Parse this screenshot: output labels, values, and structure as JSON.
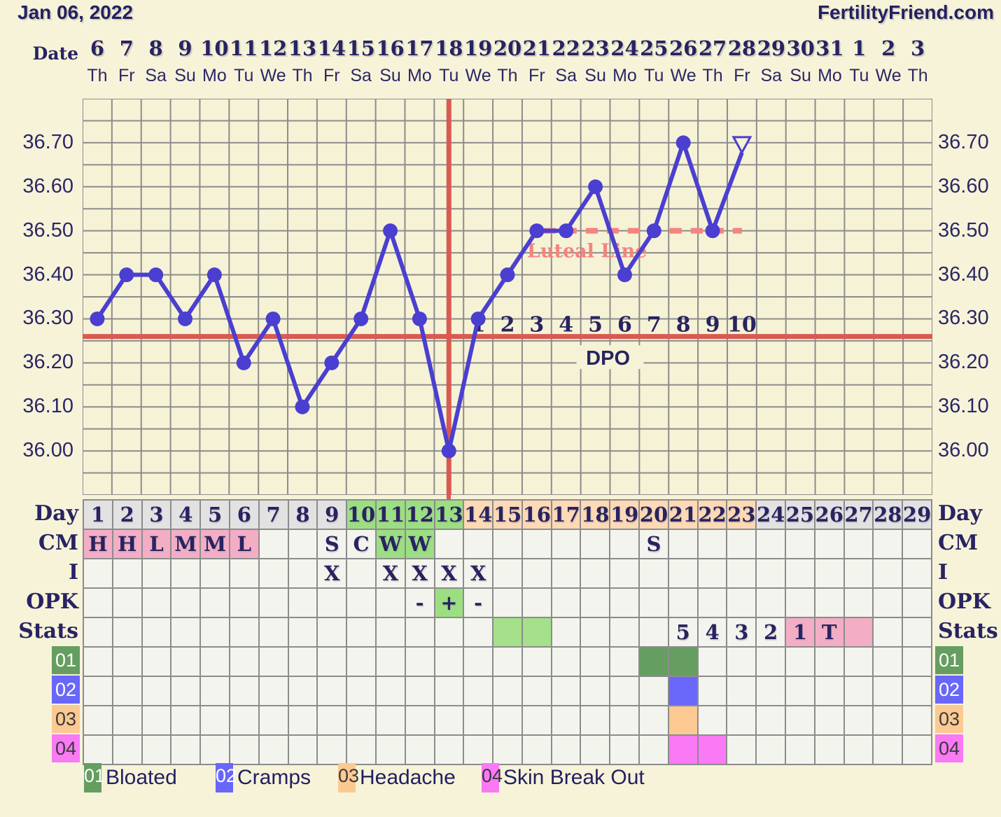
{
  "header": {
    "date_title": "Jan 06, 2022",
    "site_name": "FertilityFriend.com",
    "date_row_label": "Date"
  },
  "calendar": {
    "dates": [
      "6",
      "7",
      "8",
      "9",
      "10",
      "11",
      "12",
      "13",
      "14",
      "15",
      "16",
      "17",
      "18",
      "19",
      "20",
      "21",
      "22",
      "23",
      "24",
      "25",
      "26",
      "27",
      "28",
      "29",
      "30",
      "31",
      "1",
      "2",
      "3"
    ],
    "weekdays": [
      "Th",
      "Fr",
      "Sa",
      "Su",
      "Mo",
      "Tu",
      "We",
      "Th",
      "Fr",
      "Sa",
      "Su",
      "Mo",
      "Tu",
      "We",
      "Th",
      "Fr",
      "Sa",
      "Su",
      "Mo",
      "Tu",
      "We",
      "Th",
      "Fr",
      "Sa",
      "Su",
      "Mo",
      "Tu",
      "We",
      "Th"
    ]
  },
  "chart_data": {
    "type": "line",
    "x_label": "Cycle Day",
    "x_days": [
      1,
      2,
      3,
      4,
      5,
      6,
      7,
      8,
      9,
      10,
      11,
      12,
      13,
      14,
      15,
      16,
      17,
      18,
      19,
      20,
      21,
      22,
      23,
      24,
      25,
      26,
      27,
      28,
      29
    ],
    "temps_celsius": [
      36.3,
      36.4,
      36.4,
      36.3,
      36.4,
      36.2,
      36.3,
      36.1,
      36.2,
      36.3,
      36.5,
      36.3,
      36.0,
      36.3,
      36.4,
      36.5,
      36.5,
      36.6,
      36.4,
      36.5,
      36.7,
      36.5,
      36.7,
      null,
      null,
      null,
      null,
      null,
      null
    ],
    "last_point_marker": "open-triangle",
    "yticks": [
      "36.70",
      "36.60",
      "36.50",
      "36.40",
      "36.30",
      "36.20",
      "36.10",
      "36.00"
    ],
    "ylim": [
      35.9,
      36.8
    ],
    "grid_step": 0.05,
    "coverline_value": 36.26,
    "ovulation_day": 13,
    "luteal_line": {
      "value": 36.5,
      "label": "Luteal Line",
      "start_day": 16,
      "end_day": 23
    },
    "dpo": {
      "label": "DPO",
      "numbers": [
        "1",
        "2",
        "3",
        "4",
        "5",
        "6",
        "7",
        "8",
        "9",
        "10"
      ],
      "start_day": 14
    }
  },
  "colors": {
    "page_bg": "#f7f3d9",
    "plot_bg": "#f6f2d6",
    "grid": "#8c8c8c",
    "cell_bg": "#f4f4ee",
    "navy": "#282361",
    "temp_line": "#4a3fd0",
    "red_line": "#d85a50",
    "salmon": "#f5837f",
    "gy": "#e2e2e2",
    "gn": "#9cdf82",
    "pe": "#fdd9b5",
    "pk": "#f3aec6",
    "lg": "#a5e08a",
    "g1": "#659e60",
    "bl": "#6967fa",
    "or": "#fcc993",
    "mg": "#fa79f5"
  },
  "table": {
    "rows": [
      {
        "id": "day",
        "label": "Day",
        "cells": [
          [
            "1",
            "gy"
          ],
          [
            "2",
            "gy"
          ],
          [
            "3",
            "gy"
          ],
          [
            "4",
            "gy"
          ],
          [
            "5",
            "gy"
          ],
          [
            "6",
            "gy"
          ],
          [
            "7",
            "gy"
          ],
          [
            "8",
            "gy"
          ],
          [
            "9",
            "gy"
          ],
          [
            "10",
            "gn"
          ],
          [
            "11",
            "gn"
          ],
          [
            "12",
            "gn"
          ],
          [
            "13",
            "gn"
          ],
          [
            "14",
            "pe"
          ],
          [
            "15",
            "pe"
          ],
          [
            "16",
            "pe"
          ],
          [
            "17",
            "pe"
          ],
          [
            "18",
            "pe"
          ],
          [
            "19",
            "pe"
          ],
          [
            "20",
            "pe"
          ],
          [
            "21",
            "pe"
          ],
          [
            "22",
            "pe"
          ],
          [
            "23",
            "pe"
          ],
          [
            "24",
            "gy"
          ],
          [
            "25",
            "gy"
          ],
          [
            "26",
            "gy"
          ],
          [
            "27",
            "gy"
          ],
          [
            "28",
            "gy"
          ],
          [
            "29",
            "gy"
          ]
        ]
      },
      {
        "id": "cm",
        "label": "CM",
        "cells": [
          [
            "H",
            "pk"
          ],
          [
            "H",
            "pk"
          ],
          [
            "L",
            "pk"
          ],
          [
            "M",
            "pk"
          ],
          [
            "M",
            "pk"
          ],
          [
            "L",
            "pk"
          ],
          [
            "",
            ""
          ],
          [
            "",
            ""
          ],
          [
            "S",
            ""
          ],
          [
            "C",
            ""
          ],
          [
            "W",
            "gn"
          ],
          [
            "W",
            "gn"
          ],
          [
            "",
            ""
          ],
          [
            "",
            ""
          ],
          [
            "",
            ""
          ],
          [
            "",
            ""
          ],
          [
            "",
            ""
          ],
          [
            "",
            ""
          ],
          [
            "",
            ""
          ],
          [
            "S",
            ""
          ],
          [
            "",
            ""
          ],
          [
            "",
            ""
          ],
          [
            "",
            ""
          ],
          [
            "",
            ""
          ],
          [
            "",
            ""
          ],
          [
            "",
            ""
          ],
          [
            "",
            ""
          ],
          [
            "",
            ""
          ],
          [
            "",
            ""
          ]
        ]
      },
      {
        "id": "i",
        "label": "I",
        "cells": [
          [
            "",
            ""
          ],
          [
            "",
            ""
          ],
          [
            "",
            ""
          ],
          [
            "",
            ""
          ],
          [
            "",
            ""
          ],
          [
            "",
            ""
          ],
          [
            "",
            ""
          ],
          [
            "",
            ""
          ],
          [
            "X",
            ""
          ],
          [
            "",
            ""
          ],
          [
            "X",
            ""
          ],
          [
            "X",
            ""
          ],
          [
            "X",
            ""
          ],
          [
            "X",
            ""
          ],
          [
            "",
            ""
          ],
          [
            "",
            ""
          ],
          [
            "",
            ""
          ],
          [
            "",
            ""
          ],
          [
            "",
            ""
          ],
          [
            "",
            ""
          ],
          [
            "",
            ""
          ],
          [
            "",
            ""
          ],
          [
            "",
            ""
          ],
          [
            "",
            ""
          ],
          [
            "",
            ""
          ],
          [
            "",
            ""
          ],
          [
            "",
            ""
          ],
          [
            "",
            ""
          ],
          [
            "",
            ""
          ]
        ]
      },
      {
        "id": "opk",
        "label": "OPK",
        "cells": [
          [
            "",
            ""
          ],
          [
            "",
            ""
          ],
          [
            "",
            ""
          ],
          [
            "",
            ""
          ],
          [
            "",
            ""
          ],
          [
            "",
            ""
          ],
          [
            "",
            ""
          ],
          [
            "",
            ""
          ],
          [
            "",
            ""
          ],
          [
            "",
            ""
          ],
          [
            "",
            ""
          ],
          [
            "-",
            ""
          ],
          [
            "+",
            "gn"
          ],
          [
            "-",
            ""
          ],
          [
            "",
            ""
          ],
          [
            "",
            ""
          ],
          [
            "",
            ""
          ],
          [
            "",
            ""
          ],
          [
            "",
            ""
          ],
          [
            "",
            ""
          ],
          [
            "",
            ""
          ],
          [
            "",
            ""
          ],
          [
            "",
            ""
          ],
          [
            "",
            ""
          ],
          [
            "",
            ""
          ],
          [
            "",
            ""
          ],
          [
            "",
            ""
          ],
          [
            "",
            ""
          ],
          [
            "",
            ""
          ]
        ]
      },
      {
        "id": "stats",
        "label": "Stats",
        "cells": [
          [
            "",
            ""
          ],
          [
            "",
            ""
          ],
          [
            "",
            ""
          ],
          [
            "",
            ""
          ],
          [
            "",
            ""
          ],
          [
            "",
            ""
          ],
          [
            "",
            ""
          ],
          [
            "",
            ""
          ],
          [
            "",
            ""
          ],
          [
            "",
            ""
          ],
          [
            "",
            ""
          ],
          [
            "",
            ""
          ],
          [
            "",
            ""
          ],
          [
            "",
            ""
          ],
          [
            "",
            "lg"
          ],
          [
            "",
            "lg"
          ],
          [
            "",
            ""
          ],
          [
            "",
            ""
          ],
          [
            "",
            ""
          ],
          [
            "",
            ""
          ],
          [
            "5",
            ""
          ],
          [
            "4",
            ""
          ],
          [
            "3",
            ""
          ],
          [
            "2",
            ""
          ],
          [
            "1",
            "pk"
          ],
          [
            "T",
            "pk"
          ],
          [
            "",
            "pk"
          ],
          [
            "",
            ""
          ],
          [
            "",
            ""
          ]
        ]
      },
      {
        "id": "symptom-01",
        "label": "01",
        "cells": [
          [
            "",
            ""
          ],
          [
            "",
            ""
          ],
          [
            "",
            ""
          ],
          [
            "",
            ""
          ],
          [
            "",
            ""
          ],
          [
            "",
            ""
          ],
          [
            "",
            ""
          ],
          [
            "",
            ""
          ],
          [
            "",
            ""
          ],
          [
            "",
            ""
          ],
          [
            "",
            ""
          ],
          [
            "",
            ""
          ],
          [
            "",
            ""
          ],
          [
            "",
            ""
          ],
          [
            "",
            ""
          ],
          [
            "",
            ""
          ],
          [
            "",
            ""
          ],
          [
            "",
            ""
          ],
          [
            "",
            ""
          ],
          [
            "",
            "g1"
          ],
          [
            "",
            "g1"
          ],
          [
            "",
            ""
          ],
          [
            "",
            ""
          ],
          [
            "",
            ""
          ],
          [
            "",
            ""
          ],
          [
            "",
            ""
          ],
          [
            "",
            ""
          ],
          [
            "",
            ""
          ],
          [
            "",
            ""
          ]
        ]
      },
      {
        "id": "symptom-02",
        "label": "02",
        "cells": [
          [
            "",
            ""
          ],
          [
            "",
            ""
          ],
          [
            "",
            ""
          ],
          [
            "",
            ""
          ],
          [
            "",
            ""
          ],
          [
            "",
            ""
          ],
          [
            "",
            ""
          ],
          [
            "",
            ""
          ],
          [
            "",
            ""
          ],
          [
            "",
            ""
          ],
          [
            "",
            ""
          ],
          [
            "",
            ""
          ],
          [
            "",
            ""
          ],
          [
            "",
            ""
          ],
          [
            "",
            ""
          ],
          [
            "",
            ""
          ],
          [
            "",
            ""
          ],
          [
            "",
            ""
          ],
          [
            "",
            ""
          ],
          [
            "",
            ""
          ],
          [
            "",
            "bl"
          ],
          [
            "",
            ""
          ],
          [
            "",
            ""
          ],
          [
            "",
            ""
          ],
          [
            "",
            ""
          ],
          [
            "",
            ""
          ],
          [
            "",
            ""
          ],
          [
            "",
            ""
          ],
          [
            "",
            ""
          ]
        ]
      },
      {
        "id": "symptom-03",
        "label": "03",
        "cells": [
          [
            "",
            ""
          ],
          [
            "",
            ""
          ],
          [
            "",
            ""
          ],
          [
            "",
            ""
          ],
          [
            "",
            ""
          ],
          [
            "",
            ""
          ],
          [
            "",
            ""
          ],
          [
            "",
            ""
          ],
          [
            "",
            ""
          ],
          [
            "",
            ""
          ],
          [
            "",
            ""
          ],
          [
            "",
            ""
          ],
          [
            "",
            ""
          ],
          [
            "",
            ""
          ],
          [
            "",
            ""
          ],
          [
            "",
            ""
          ],
          [
            "",
            ""
          ],
          [
            "",
            ""
          ],
          [
            "",
            ""
          ],
          [
            "",
            ""
          ],
          [
            "",
            "or"
          ],
          [
            "",
            ""
          ],
          [
            "",
            ""
          ],
          [
            "",
            ""
          ],
          [
            "",
            ""
          ],
          [
            "",
            ""
          ],
          [
            "",
            ""
          ],
          [
            "",
            ""
          ],
          [
            "",
            ""
          ]
        ]
      },
      {
        "id": "symptom-04",
        "label": "04",
        "cells": [
          [
            "",
            ""
          ],
          [
            "",
            ""
          ],
          [
            "",
            ""
          ],
          [
            "",
            ""
          ],
          [
            "",
            ""
          ],
          [
            "",
            ""
          ],
          [
            "",
            ""
          ],
          [
            "",
            ""
          ],
          [
            "",
            ""
          ],
          [
            "",
            ""
          ],
          [
            "",
            ""
          ],
          [
            "",
            ""
          ],
          [
            "",
            ""
          ],
          [
            "",
            ""
          ],
          [
            "",
            ""
          ],
          [
            "",
            ""
          ],
          [
            "",
            ""
          ],
          [
            "",
            ""
          ],
          [
            "",
            ""
          ],
          [
            "",
            ""
          ],
          [
            "",
            "mg"
          ],
          [
            "",
            "mg"
          ],
          [
            "",
            ""
          ],
          [
            "",
            ""
          ],
          [
            "",
            ""
          ],
          [
            "",
            ""
          ],
          [
            "",
            ""
          ],
          [
            "",
            ""
          ],
          [
            "",
            ""
          ]
        ]
      }
    ],
    "side_labels": [
      "Day",
      "CM",
      "I",
      "OPK",
      "Stats"
    ],
    "chips": [
      {
        "num": "01",
        "color": "g1",
        "text_color": "#ffffff"
      },
      {
        "num": "02",
        "color": "bl",
        "text_color": "#ffffff"
      },
      {
        "num": "03",
        "color": "or",
        "text_color": "#3a3a3a"
      },
      {
        "num": "04",
        "color": "mg",
        "text_color": "#3a3a3a"
      }
    ]
  },
  "legend": [
    {
      "num": "01",
      "color": "g1",
      "num_color": "#ffffff",
      "label": "Bloated",
      "x": 120
    },
    {
      "num": "02",
      "color": "bl",
      "num_color": "#ffffff",
      "label": "Cramps",
      "x": 308
    },
    {
      "num": "03",
      "color": "or",
      "num_color": "#3a3a3a",
      "label": "Headache",
      "x": 483
    },
    {
      "num": "04",
      "color": "mg",
      "num_color": "#3a3a3a",
      "label": "Skin Break Out",
      "x": 688
    }
  ]
}
